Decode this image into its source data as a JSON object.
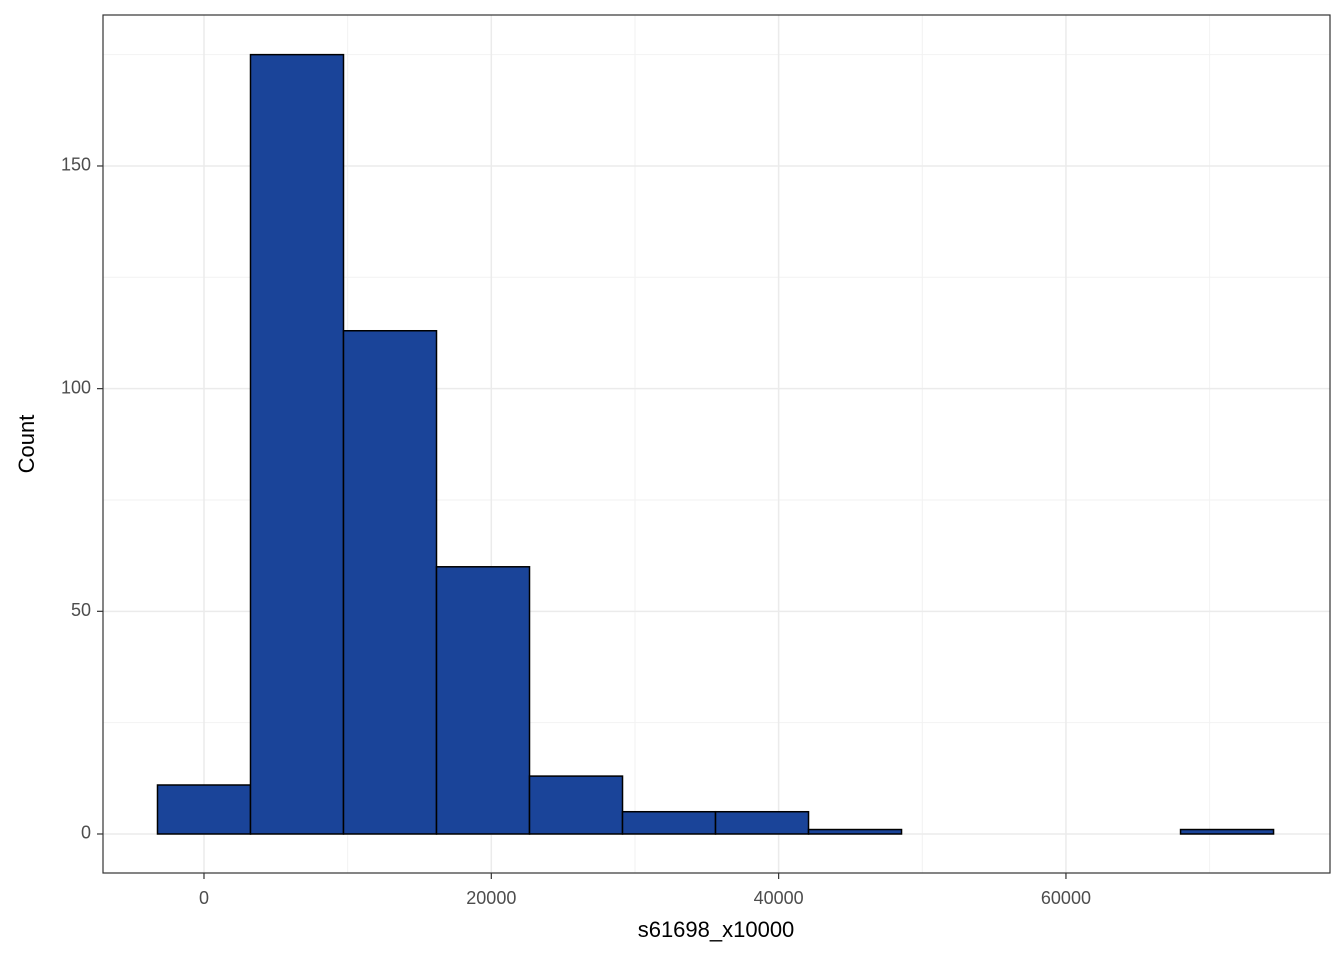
{
  "chart_data": {
    "type": "histogram",
    "xlabel": "s61698_x10000",
    "ylabel": "Count",
    "bins": [
      -3237,
      3237,
      9711,
      16185,
      22659,
      29133,
      35607,
      42081,
      48555,
      55029,
      61503,
      67977,
      74451
    ],
    "values": [
      11,
      175,
      113,
      60,
      13,
      5,
      5,
      1,
      0,
      0,
      0,
      1
    ],
    "color": "#1a4499",
    "edgecolor": "#000000",
    "xlim": [
      -7030,
      78380
    ],
    "ylim": [
      -8.76,
      183.9
    ],
    "xticks": [
      0,
      20000,
      40000,
      60000
    ],
    "yticks": [
      0,
      50,
      100,
      150
    ],
    "xminor": [
      10000,
      30000,
      50000,
      70000
    ],
    "yminor": [
      25,
      75,
      125,
      175
    ],
    "grid": true
  }
}
